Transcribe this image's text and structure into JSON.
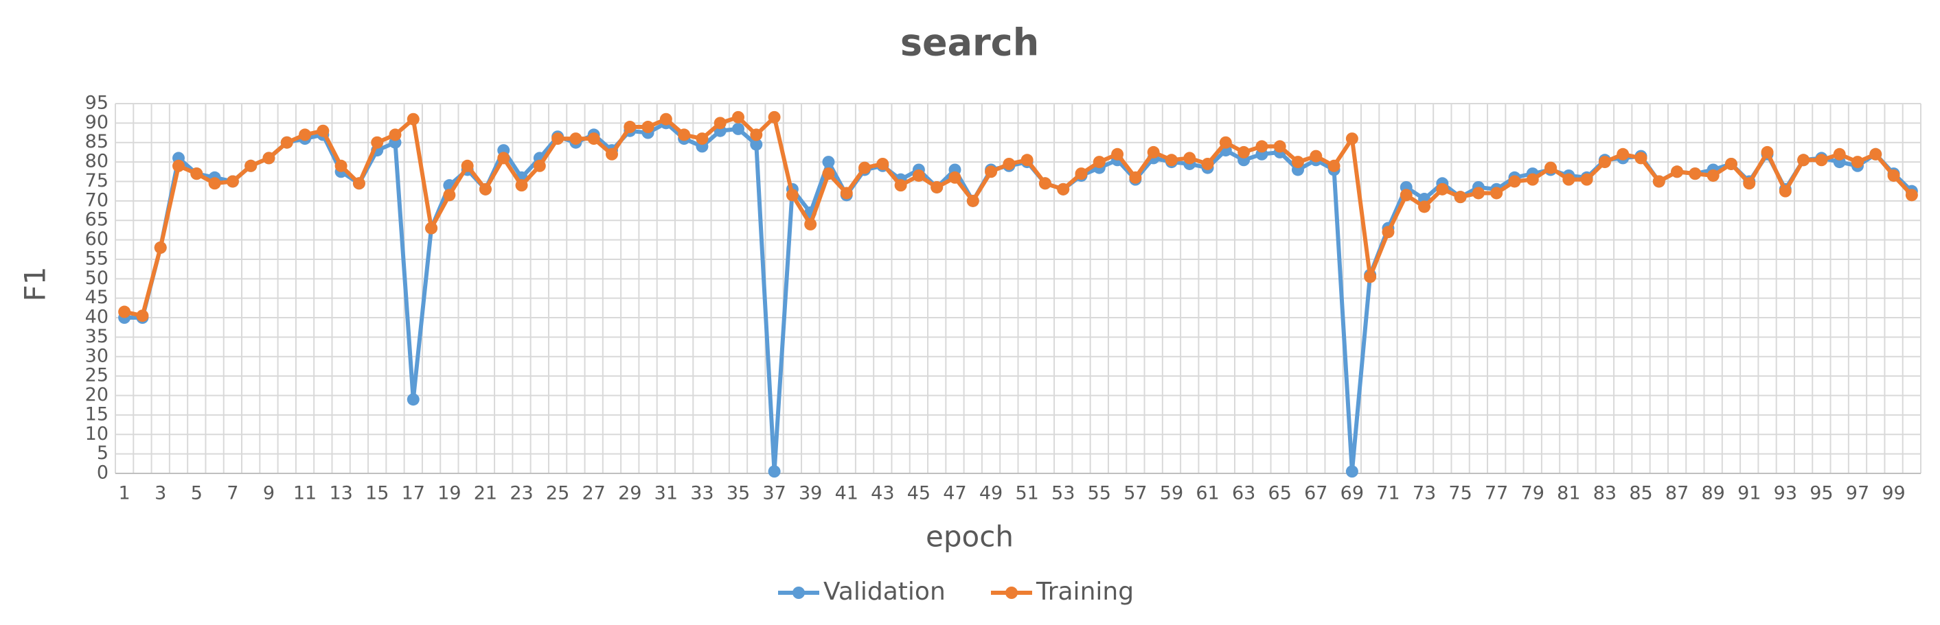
{
  "chart_data": {
    "type": "line",
    "title": "search",
    "xlabel": "epoch",
    "ylabel": "F1",
    "categories": [
      "1",
      null,
      "3",
      null,
      "5",
      null,
      "7",
      null,
      "9",
      null,
      "11",
      null,
      "13",
      null,
      "15",
      null,
      "17",
      null,
      "19",
      null,
      "21",
      null,
      "23",
      null,
      "25",
      null,
      "27",
      null,
      "29",
      null,
      "31",
      null,
      "33",
      null,
      "35",
      null,
      "37",
      null,
      "39",
      null,
      "41",
      null,
      "43",
      null,
      "45",
      null,
      "47",
      null,
      "49",
      null,
      "51",
      null,
      "53",
      null,
      "55",
      null,
      "57",
      null,
      "59",
      null,
      "61",
      null,
      "63",
      null,
      "65",
      null,
      "67",
      null,
      "69",
      null,
      "71",
      null,
      "73",
      null,
      "75",
      null,
      "77",
      null,
      "79",
      null,
      "81",
      null,
      "83",
      null,
      "85",
      null,
      "87",
      null,
      "89",
      null,
      "91",
      null,
      "93",
      null,
      "95",
      null,
      "97",
      null,
      "99",
      null
    ],
    "series": [
      {
        "name": "Validation",
        "color": "#5b9bd5",
        "values": [
          40,
          40,
          58,
          81,
          77,
          76,
          75,
          79,
          81,
          85,
          86,
          87,
          77.5,
          74.5,
          83,
          85,
          19,
          63,
          74,
          78,
          73,
          83,
          76,
          81,
          86.5,
          85,
          87,
          83,
          88,
          87.5,
          90,
          86,
          84,
          88,
          88.5,
          84.5,
          0.5,
          73,
          67,
          80,
          71.5,
          78,
          79,
          75.5,
          78,
          73.5,
          78,
          70,
          78,
          79,
          80,
          74.5,
          73,
          76.5,
          78.5,
          80.5,
          75.5,
          81,
          80,
          79.5,
          78.5,
          83,
          80.5,
          82,
          82.5,
          78,
          80.5,
          78,
          0.5,
          51,
          63,
          73.5,
          70.5,
          74.5,
          71,
          73.5,
          73,
          76,
          77,
          78,
          76.5,
          76,
          80.5,
          81,
          81.5,
          75,
          77.5,
          77,
          78,
          79.5,
          75,
          82,
          73,
          80.5,
          81,
          80,
          79,
          82,
          77,
          72.5
        ]
      },
      {
        "name": "Training",
        "color": "#ed7d31",
        "values": [
          41.5,
          40.5,
          58,
          79,
          77,
          74.5,
          75,
          79,
          81,
          85,
          87,
          88,
          79,
          74.5,
          85,
          87,
          91,
          63,
          71.5,
          79,
          73,
          81,
          74,
          79,
          86,
          86,
          86,
          82,
          89,
          89,
          91,
          87,
          86,
          90,
          91.5,
          87,
          91.5,
          71.5,
          64,
          77,
          72,
          78.5,
          79.5,
          74,
          76.5,
          73.5,
          76,
          70,
          77.5,
          79.5,
          80.5,
          74.5,
          73,
          77,
          80,
          82,
          76,
          82.5,
          80.5,
          81,
          79.5,
          85,
          82.5,
          84,
          84,
          80,
          81.5,
          79,
          86,
          50.5,
          62,
          71.5,
          68.5,
          73,
          71,
          72,
          72,
          75,
          75.5,
          78.5,
          75.5,
          75.5,
          80,
          82,
          81,
          75,
          77.5,
          77,
          76.5,
          79.5,
          74.5,
          82.5,
          72.5,
          80.5,
          80.5,
          82,
          80,
          82,
          76.5,
          71.5
        ]
      }
    ],
    "ylim": [
      0,
      95
    ],
    "yticks": [
      0,
      5,
      10,
      15,
      20,
      25,
      30,
      35,
      40,
      45,
      50,
      55,
      60,
      65,
      70,
      75,
      80,
      85,
      90,
      95
    ],
    "grid": true,
    "legend": "bottom"
  }
}
